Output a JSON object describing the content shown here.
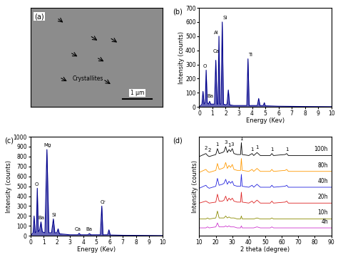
{
  "chart_data": [
    {
      "type": "image",
      "label": "(a)",
      "annotations": [
        {
          "text": "Crystallites"
        },
        {
          "text": "1 μm"
        }
      ]
    },
    {
      "type": "line",
      "label": "(b)",
      "x_label": "Energy (Kev)",
      "y_label": "Intensity (counts)",
      "color": "#00008b",
      "x": [
        0,
        0.2,
        0.28,
        0.36,
        0.45,
        0.52,
        0.6,
        0.7,
        0.78,
        0.86,
        1.0,
        1.15,
        1.25,
        1.35,
        1.42,
        1.49,
        1.56,
        1.65,
        1.74,
        1.83,
        2.0,
        2.1,
        2.2,
        2.3,
        2.6,
        3.0,
        3.6,
        3.69,
        3.78,
        4.0,
        4.4,
        4.5,
        4.6,
        4.85,
        4.93,
        5.0,
        6.0,
        8.0,
        10
      ],
      "values": [
        0,
        20,
        110,
        20,
        30,
        260,
        30,
        20,
        40,
        20,
        20,
        20,
        330,
        20,
        20,
        500,
        20,
        20,
        600,
        20,
        15,
        20,
        120,
        15,
        10,
        10,
        10,
        340,
        10,
        10,
        10,
        60,
        10,
        10,
        30,
        8,
        5,
        3,
        2
      ],
      "xlim": [
        0,
        10
      ],
      "xticks": [
        0,
        1,
        2,
        3,
        4,
        5,
        6,
        7,
        8,
        9,
        10
      ],
      "ylim": [
        0,
        700
      ],
      "yticks": [
        0,
        100,
        200,
        300,
        400,
        500,
        600,
        700
      ],
      "annotations": [
        {
          "text": "O",
          "x": 0.42,
          "y": 275
        },
        {
          "text": "Ba",
          "x": 0.85,
          "y": 60
        },
        {
          "text": "Al",
          "x": 1.3,
          "y": 510
        },
        {
          "text": "Ca",
          "x": 1.3,
          "y": 380
        },
        {
          "text": "Si",
          "x": 1.95,
          "y": 615
        },
        {
          "text": "Ti",
          "x": 3.85,
          "y": 355
        }
      ]
    },
    {
      "type": "line",
      "label": "(c)",
      "x_label": "Energy (Kev)",
      "y_label": "Intensity (counts)",
      "color": "#00008b",
      "x": [
        0,
        0.2,
        0.28,
        0.36,
        0.45,
        0.52,
        0.6,
        0.7,
        0.8,
        0.9,
        1.1,
        1.25,
        1.4,
        1.6,
        1.74,
        1.85,
        2.0,
        2.1,
        2.2,
        3.0,
        3.6,
        3.69,
        3.8,
        4.35,
        4.47,
        4.6,
        5.3,
        5.41,
        5.5,
        5.85,
        5.95,
        6.05,
        7.0,
        10
      ],
      "values": [
        0,
        30,
        200,
        30,
        40,
        480,
        40,
        60,
        140,
        40,
        30,
        870,
        30,
        30,
        170,
        30,
        30,
        70,
        20,
        10,
        10,
        25,
        10,
        10,
        22,
        10,
        10,
        300,
        10,
        10,
        60,
        8,
        5,
        2
      ],
      "xlim": [
        0,
        10
      ],
      "xticks": [
        0,
        1,
        2,
        3,
        4,
        5,
        6,
        7,
        8,
        9,
        10
      ],
      "ylim": [
        0,
        1000
      ],
      "yticks": [
        0,
        100,
        200,
        300,
        400,
        500,
        600,
        700,
        800,
        900,
        1000
      ],
      "annotations": [
        {
          "text": "O",
          "x": 0.45,
          "y": 500
        },
        {
          "text": "Ba",
          "x": 0.8,
          "y": 160
        },
        {
          "text": "Mg",
          "x": 1.3,
          "y": 890
        },
        {
          "text": "Si",
          "x": 1.78,
          "y": 190
        },
        {
          "text": "Ca",
          "x": 3.6,
          "y": 45
        },
        {
          "text": "Ba",
          "x": 4.45,
          "y": 45
        },
        {
          "text": "Cr",
          "x": 5.5,
          "y": 320
        }
      ]
    },
    {
      "type": "line",
      "label": "(d)",
      "x_label": "2 theta (degree)",
      "y_label": "Intensity (counts)",
      "tick_labels": "x",
      "x": [
        10,
        14,
        15,
        16,
        20,
        21,
        22,
        24,
        25,
        26,
        27,
        28,
        29,
        30,
        31,
        33,
        35,
        35.5,
        36,
        40,
        42,
        43,
        45,
        47,
        53,
        54,
        55,
        62,
        63,
        64,
        70,
        80,
        90
      ],
      "series": [
        {
          "name": "4h",
          "color": "#cc33cc",
          "values": [
            8,
            8,
            9,
            8,
            9,
            13,
            9,
            9,
            9,
            10,
            9,
            10,
            9,
            9,
            9,
            8,
            8,
            10,
            8,
            8,
            8,
            8,
            9,
            8,
            8,
            9,
            8,
            8,
            8,
            8,
            8,
            8,
            8
          ]
        },
        {
          "name": "10h",
          "color": "#8b8b00",
          "values": [
            17,
            17,
            18,
            17,
            18,
            25,
            18,
            18,
            18,
            20,
            18,
            19,
            18,
            18,
            18,
            17,
            17,
            20,
            17,
            17,
            17,
            17,
            18,
            17,
            17,
            18,
            17,
            17,
            17,
            17,
            17,
            17,
            17
          ]
        },
        {
          "name": "20h",
          "color": "#dd2222",
          "values": [
            33,
            35,
            34,
            33,
            34,
            42,
            35,
            35,
            36,
            40,
            35,
            38,
            36,
            38,
            35,
            34,
            34,
            44,
            34,
            33,
            35,
            33,
            36,
            33,
            33,
            35,
            33,
            34,
            35,
            33,
            33,
            33,
            33
          ]
        },
        {
          "name": "40h",
          "color": "#2222dd",
          "values": [
            48,
            51,
            49,
            48,
            50,
            58,
            51,
            52,
            53,
            57,
            52,
            55,
            53,
            55,
            51,
            50,
            50,
            62,
            50,
            49,
            51,
            49,
            52,
            49,
            49,
            51,
            49,
            50,
            51,
            49,
            49,
            49,
            49
          ]
        },
        {
          "name": "80h",
          "color": "#ff9900",
          "values": [
            64,
            67,
            65,
            64,
            66,
            73,
            67,
            68,
            69,
            74,
            68,
            71,
            69,
            72,
            67,
            66,
            66,
            78,
            66,
            65,
            67,
            65,
            68,
            65,
            65,
            67,
            65,
            66,
            67,
            65,
            65,
            65,
            65
          ]
        },
        {
          "name": "100h",
          "color": "#000000",
          "values": [
            80,
            83,
            81,
            80,
            82,
            88,
            83,
            84,
            85,
            90,
            84,
            87,
            85,
            88,
            83,
            82,
            82,
            94,
            82,
            81,
            83,
            81,
            84,
            81,
            81,
            83,
            81,
            82,
            83,
            81,
            81,
            81,
            81
          ]
        }
      ],
      "xlim": [
        10,
        90
      ],
      "xticks": [
        10,
        20,
        30,
        40,
        50,
        60,
        70,
        80,
        90
      ],
      "ylim": [
        0,
        100
      ],
      "annotations": [
        {
          "text": "2",
          "x": 14,
          "y": 86
        },
        {
          "text": "2",
          "x": 16,
          "y": 84
        },
        {
          "text": "1",
          "x": 21,
          "y": 90
        },
        {
          "text": "3",
          "x": 26,
          "y": 92
        },
        {
          "text": "1",
          "x": 28,
          "y": 89
        },
        {
          "text": "3",
          "x": 30,
          "y": 90
        },
        {
          "text": "1",
          "x": 35.5,
          "y": 96
        },
        {
          "text": "1",
          "x": 42,
          "y": 85
        },
        {
          "text": "1",
          "x": 45,
          "y": 87
        },
        {
          "text": "1",
          "x": 54,
          "y": 85
        },
        {
          "text": "1",
          "x": 63,
          "y": 85
        }
      ]
    }
  ]
}
